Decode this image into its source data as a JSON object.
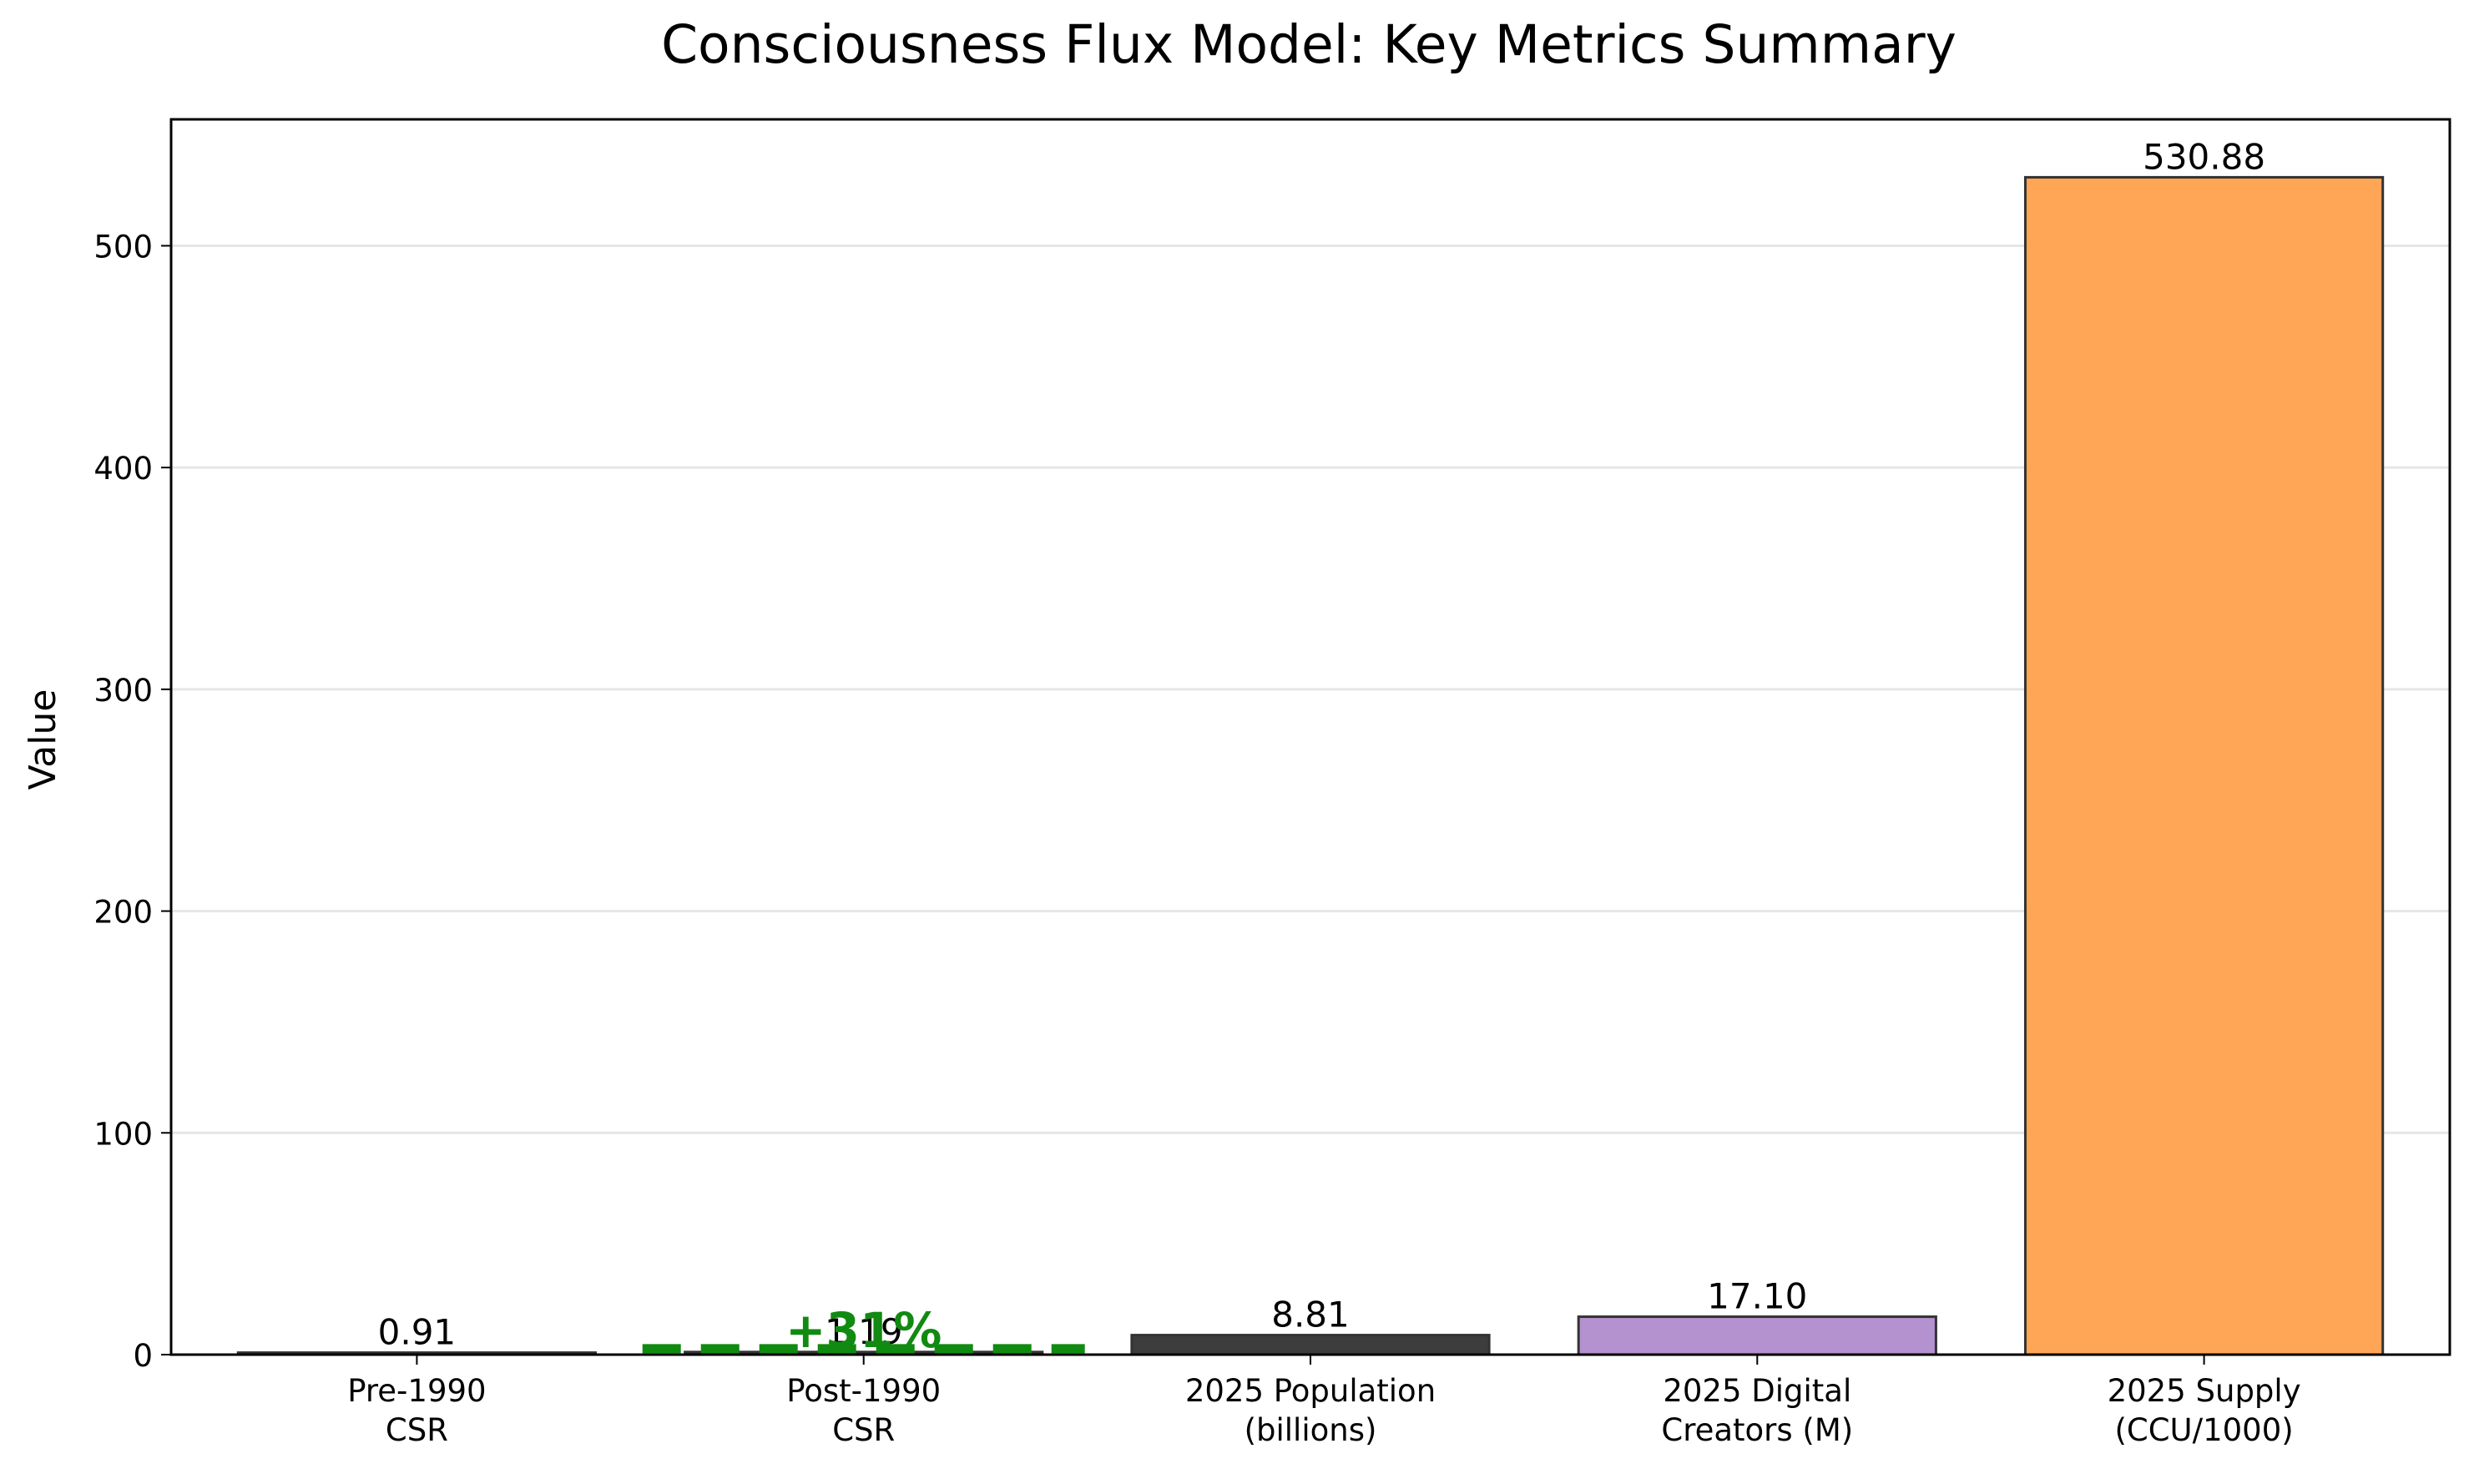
{
  "chart_data": {
    "type": "bar",
    "title": "Consciousness Flux Model: Key Metrics Summary",
    "xlabel": "",
    "ylabel": "Value",
    "ylim": [
      0,
      557
    ],
    "yticks": [
      0,
      100,
      200,
      300,
      400,
      500
    ],
    "grid": "y",
    "categories": [
      "Pre-1990\nCSR",
      "Post-1990\nCSR",
      "2025 Population\n(billions)",
      "2025 Digital\nCreators (M)",
      "2025 Supply\n(CCU/1000)"
    ],
    "values": [
      0.91,
      1.19,
      8.81,
      17.1,
      530.88
    ],
    "value_labels": [
      "0.91",
      "1.19",
      "8.81",
      "17.10",
      "530.88"
    ],
    "bar_colors": [
      "#3d3d3d",
      "#3d3d3d",
      "#3d3d3d",
      "#b491cf",
      "#ffa556"
    ],
    "annotations": [
      {
        "text": "+31%",
        "category_index": 1,
        "y": 1.19,
        "color": "#118a11",
        "style": "dashed-line"
      }
    ]
  }
}
